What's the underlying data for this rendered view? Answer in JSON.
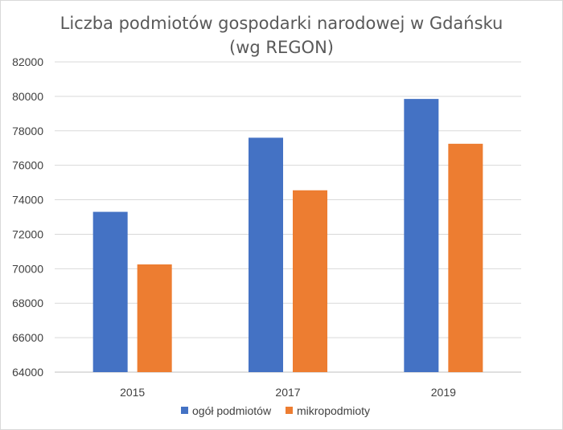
{
  "chart_data": {
    "type": "bar",
    "title_lines": [
      "Liczba podmiotów gospodarki narodowej w Gdańsku",
      "(wg REGON)"
    ],
    "categories": [
      "2015",
      "2017",
      "2019"
    ],
    "series": [
      {
        "name": "ogół podmiotów",
        "color": "#4472C4",
        "values": [
          73300,
          77600,
          79850
        ]
      },
      {
        "name": "mikropodmioty",
        "color": "#ED7D31",
        "values": [
          70250,
          74550,
          77250
        ]
      }
    ],
    "ylim": [
      64000,
      82000
    ],
    "yticks": [
      "64000",
      "66000",
      "68000",
      "70000",
      "72000",
      "74000",
      "76000",
      "78000",
      "80000",
      "82000"
    ],
    "grid": true,
    "legend_position": "bottom"
  }
}
